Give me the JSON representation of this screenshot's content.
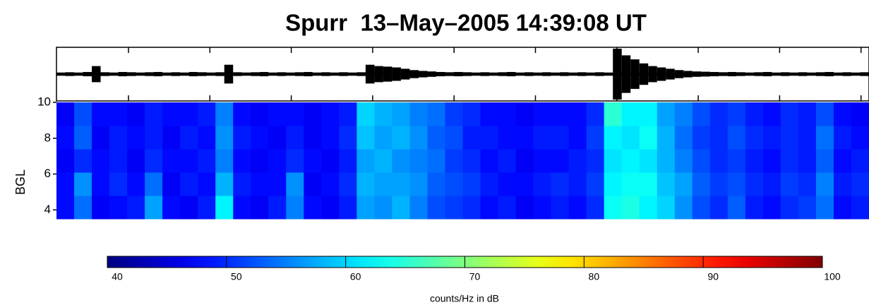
{
  "chart_data": {
    "type": "spectrogram",
    "title": "Spurr  13–May–2005 14:39:08 UT",
    "ylabel": "BGL",
    "ylim": [
      3.5,
      10
    ],
    "yticks": [
      4,
      6,
      8,
      10
    ],
    "colormap": "jet",
    "z": [
      [
        48,
        54,
        47,
        48,
        49,
        57,
        48,
        47,
        49,
        62,
        48,
        47,
        49,
        55,
        48,
        47,
        49,
        57,
        56,
        58,
        55,
        52,
        51,
        50,
        48,
        49,
        47,
        48,
        49,
        48,
        50,
        63,
        64,
        62,
        60,
        56,
        52,
        50,
        53,
        49,
        48,
        50,
        51,
        54,
        48,
        49
      ],
      [
        48,
        56,
        48,
        50,
        48,
        54,
        47,
        49,
        48,
        58,
        49,
        48,
        48,
        56,
        47,
        48,
        50,
        58,
        57,
        57,
        56,
        53,
        52,
        51,
        49,
        48,
        48,
        49,
        50,
        49,
        51,
        62,
        63,
        63,
        59,
        57,
        53,
        51,
        52,
        50,
        49,
        51,
        50,
        55,
        49,
        50
      ],
      [
        47,
        50,
        48,
        49,
        47,
        50,
        48,
        48,
        49,
        55,
        48,
        47,
        48,
        50,
        48,
        47,
        49,
        57,
        58,
        56,
        55,
        54,
        51,
        50,
        48,
        49,
        47,
        48,
        48,
        49,
        50,
        61,
        62,
        61,
        58,
        55,
        52,
        50,
        51,
        49,
        48,
        50,
        49,
        53,
        48,
        49
      ],
      [
        48,
        53,
        47,
        49,
        48,
        49,
        47,
        49,
        48,
        56,
        49,
        48,
        47,
        49,
        47,
        48,
        50,
        59,
        57,
        58,
        56,
        53,
        52,
        49,
        49,
        48,
        48,
        49,
        49,
        48,
        51,
        62,
        61,
        63,
        58,
        54,
        51,
        50,
        52,
        50,
        49,
        50,
        49,
        54,
        49,
        48
      ],
      [
        47,
        52,
        48,
        48,
        47,
        49,
        48,
        48,
        49,
        55,
        48,
        47,
        48,
        48,
        47,
        48,
        49,
        60,
        58,
        57,
        55,
        54,
        51,
        50,
        48,
        48,
        47,
        48,
        48,
        48,
        50,
        65,
        62,
        62,
        57,
        55,
        52,
        50,
        51,
        49,
        48,
        50,
        49,
        52,
        48,
        47
      ]
    ],
    "trace": {
      "ylim": [
        -1,
        1
      ],
      "color": "#000000",
      "values": [
        0.06,
        0.07,
        0.06,
        0.08,
        0.3,
        0.07,
        0.06,
        0.08,
        0.07,
        0.06,
        0.07,
        0.08,
        0.06,
        0.07,
        0.06,
        0.08,
        0.07,
        0.06,
        0.07,
        0.35,
        0.07,
        0.06,
        0.07,
        0.08,
        0.06,
        0.07,
        0.06,
        0.07,
        0.08,
        0.06,
        0.07,
        0.06,
        0.07,
        0.06,
        0.07,
        0.35,
        0.3,
        0.28,
        0.25,
        0.2,
        0.15,
        0.12,
        0.1,
        0.08,
        0.07,
        0.08,
        0.07,
        0.06,
        0.07,
        0.06,
        0.07,
        0.08,
        0.06,
        0.07,
        0.06,
        0.07,
        0.06,
        0.07,
        0.06,
        0.07,
        0.06,
        0.07,
        0.06,
        0.95,
        0.7,
        0.55,
        0.4,
        0.3,
        0.25,
        0.2,
        0.15,
        0.12,
        0.1,
        0.09,
        0.08,
        0.07,
        0.08,
        0.07,
        0.06,
        0.07,
        0.08,
        0.06,
        0.07,
        0.06,
        0.07,
        0.06,
        0.07,
        0.08,
        0.06,
        0.07,
        0.06,
        0.07
      ]
    },
    "clim": [
      40,
      100
    ],
    "cticks": [
      40,
      50,
      60,
      70,
      80,
      90,
      100
    ],
    "colorbar_label": "counts/Hz in dB"
  }
}
